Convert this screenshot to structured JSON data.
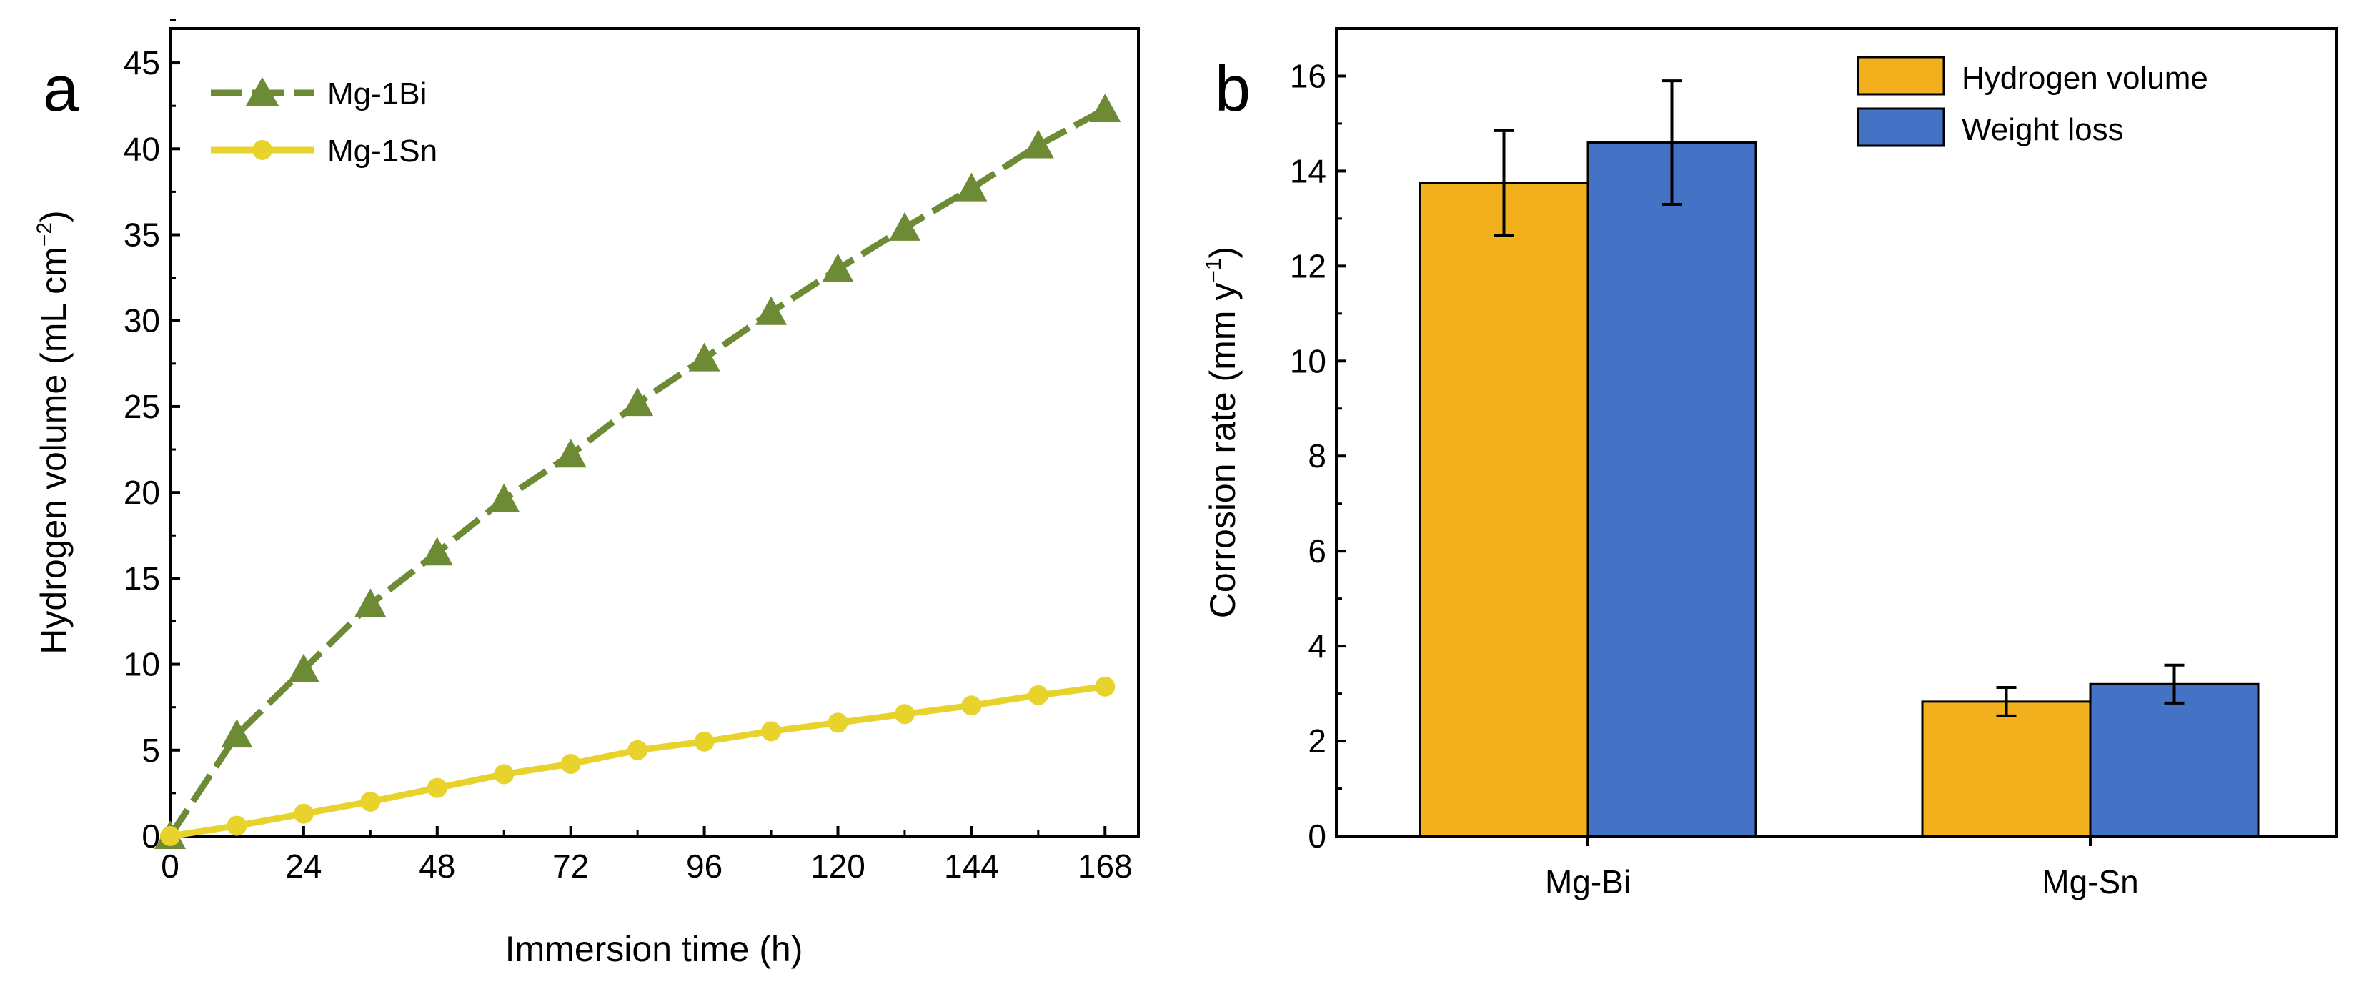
{
  "chart_data": [
    {
      "panel": "a",
      "type": "line",
      "xlabel": "Immersion time (h)",
      "ylabel": "Hydrogen volume (mL cm",
      "ylabel_sup": "−2",
      "ylabel_end": ")",
      "xlim": [
        0,
        174
      ],
      "ylim": [
        0,
        47
      ],
      "xticks": [
        0,
        24,
        48,
        72,
        96,
        120,
        144,
        168
      ],
      "yticks": [
        0,
        5,
        10,
        15,
        20,
        25,
        30,
        35,
        40,
        45
      ],
      "x": [
        0,
        12,
        24,
        36,
        48,
        60,
        72,
        84,
        96,
        108,
        120,
        132,
        144,
        156,
        168
      ],
      "series": [
        {
          "name": "Mg-1Bi",
          "color": "#6d8b35",
          "marker": "triangle",
          "values": [
            0,
            5.9,
            9.7,
            13.5,
            16.5,
            19.6,
            22.2,
            25.2,
            27.8,
            30.5,
            33.0,
            35.4,
            37.7,
            40.2,
            42.3
          ]
        },
        {
          "name": "Mg-1Sn",
          "color": "#e8d22c",
          "marker": "circle",
          "values": [
            0,
            0.6,
            1.3,
            2.0,
            2.8,
            3.6,
            4.2,
            5.0,
            5.5,
            6.1,
            6.6,
            7.1,
            7.6,
            8.2,
            8.7
          ]
        }
      ]
    },
    {
      "panel": "b",
      "type": "bar",
      "ylabel": "Corrosion rate (mm y",
      "ylabel_sup": "−1",
      "ylabel_end": ")",
      "ylim": [
        0,
        17
      ],
      "yticks": [
        0,
        2,
        4,
        6,
        8,
        10,
        12,
        14,
        16
      ],
      "categories": [
        "Mg-Bi",
        "Mg-Sn"
      ],
      "series": [
        {
          "name": "Hydrogen volume",
          "color": "#f2b01c",
          "values": [
            13.75,
            2.83
          ],
          "errors": [
            1.1,
            0.3
          ]
        },
        {
          "name": "Weight loss",
          "color": "#4472c4",
          "values": [
            14.6,
            3.2
          ],
          "errors": [
            1.3,
            0.4
          ]
        }
      ]
    }
  ]
}
